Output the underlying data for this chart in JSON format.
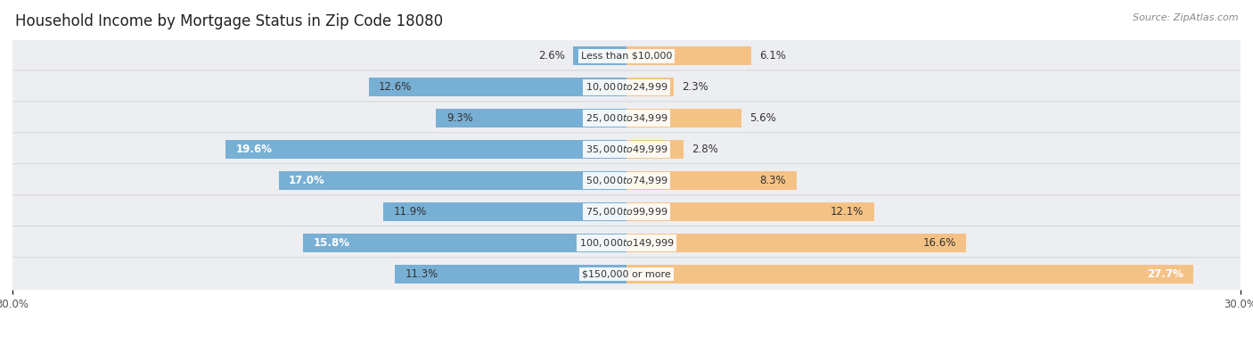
{
  "title": "Household Income by Mortgage Status in Zip Code 18080",
  "source": "Source: ZipAtlas.com",
  "categories": [
    "Less than $10,000",
    "$10,000 to $24,999",
    "$25,000 to $34,999",
    "$35,000 to $49,999",
    "$50,000 to $74,999",
    "$75,000 to $99,999",
    "$100,000 to $149,999",
    "$150,000 or more"
  ],
  "without_mortgage": [
    2.6,
    12.6,
    9.3,
    19.6,
    17.0,
    11.9,
    15.8,
    11.3
  ],
  "with_mortgage": [
    6.1,
    2.3,
    5.6,
    2.8,
    8.3,
    12.1,
    16.6,
    27.7
  ],
  "color_without": "#78AFD4",
  "color_with": "#F5C285",
  "bg_row_color": "#EDEEF2",
  "bg_row_alt_color": "#E2E4EA",
  "xlim": 30.0,
  "title_fontsize": 12,
  "label_fontsize": 8.5,
  "category_fontsize": 8.0
}
